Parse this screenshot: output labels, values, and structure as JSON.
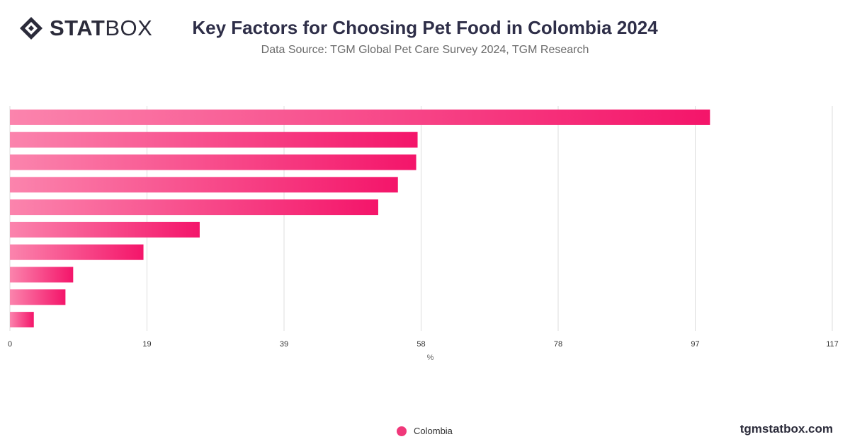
{
  "header": {
    "logo_bold": "STAT",
    "logo_light": "BOX",
    "title": "Key Factors for Choosing Pet Food in Colombia 2024",
    "subtitle": "Data Source: TGM Global Pet Care Survey 2024, TGM Research"
  },
  "chart_data": {
    "type": "bar",
    "orientation": "horizontal",
    "categories": [
      "",
      "",
      "",
      "",
      "",
      "",
      "",
      "",
      "",
      ""
    ],
    "series": [
      {
        "name": "Colombia",
        "values": [
          99.6,
          58.0,
          57.8,
          55.2,
          52.4,
          27.0,
          19.0,
          9.0,
          7.9,
          3.4
        ]
      }
    ],
    "x_ticks": [
      "0",
      "19",
      "39",
      "58",
      "78",
      "97",
      "117"
    ],
    "xlim": [
      0,
      117
    ],
    "xlabel": "%",
    "ylabel": "",
    "grid": true,
    "legend_position": "bottom",
    "colors": {
      "bar_start": "#fb84ad",
      "bar_end": "#f4156a",
      "grid": "#dddddd"
    }
  },
  "legend": {
    "label": "Colombia"
  },
  "footer": {
    "site": "tgmstatbox.com"
  }
}
